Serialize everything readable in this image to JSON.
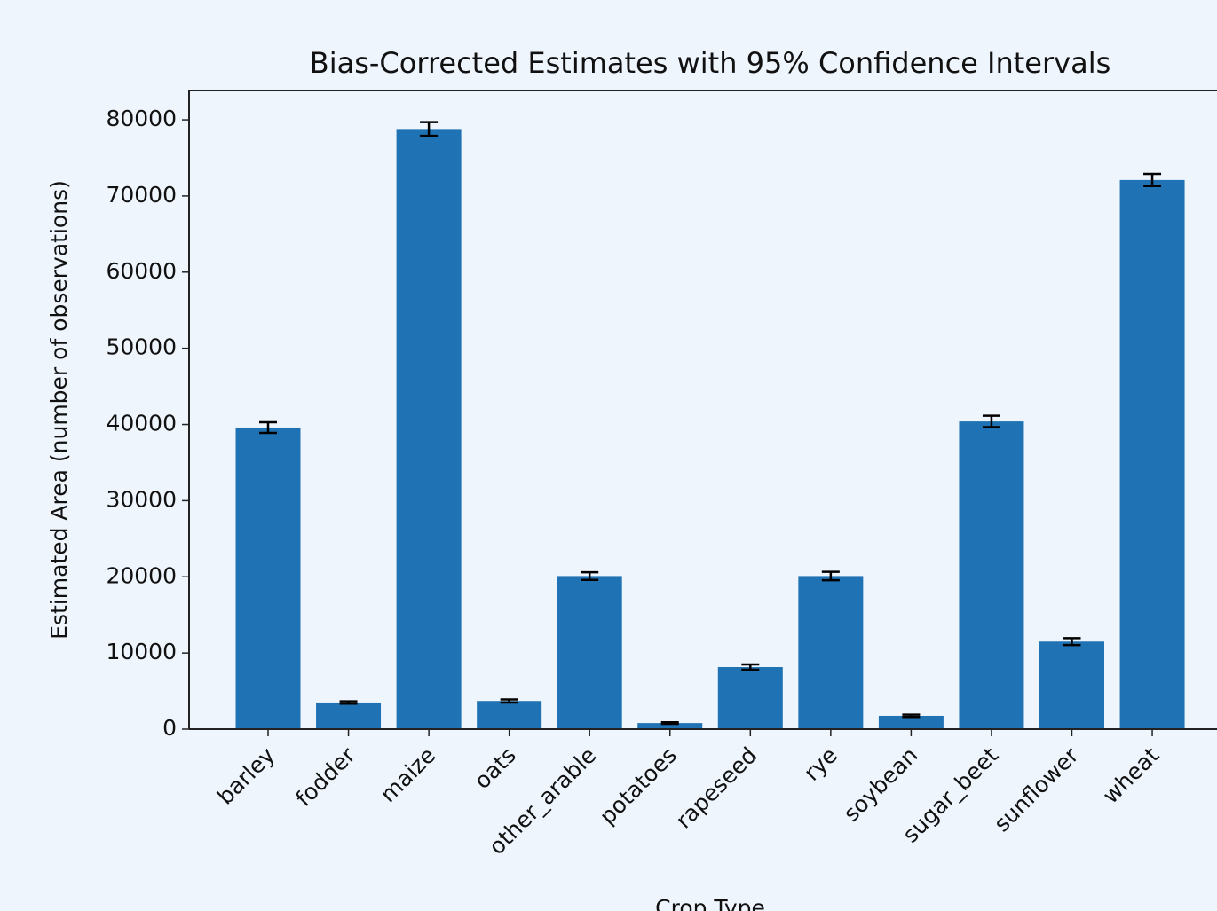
{
  "chart_data": {
    "type": "bar",
    "title": "Bias-Corrected Estimates with 95% Confidence Intervals",
    "xlabel": "Crop Type",
    "ylabel": "Estimated Area (number of observations)",
    "categories": [
      "barley",
      "fodder",
      "maize",
      "oats",
      "other_arable",
      "potatoes",
      "rapeseed",
      "rye",
      "soybean",
      "sugar_beet",
      "sunflower",
      "wheat"
    ],
    "values": [
      39600,
      3500,
      78800,
      3700,
      20100,
      800,
      8150,
      20100,
      1750,
      40400,
      11500,
      72100
    ],
    "errors": [
      700,
      150,
      900,
      200,
      500,
      100,
      350,
      550,
      150,
      750,
      450,
      800
    ],
    "color": "#1f72b3",
    "ylim": [
      0,
      83850
    ],
    "yticks": [
      0,
      10000,
      20000,
      30000,
      40000,
      50000,
      60000,
      70000,
      80000
    ]
  }
}
